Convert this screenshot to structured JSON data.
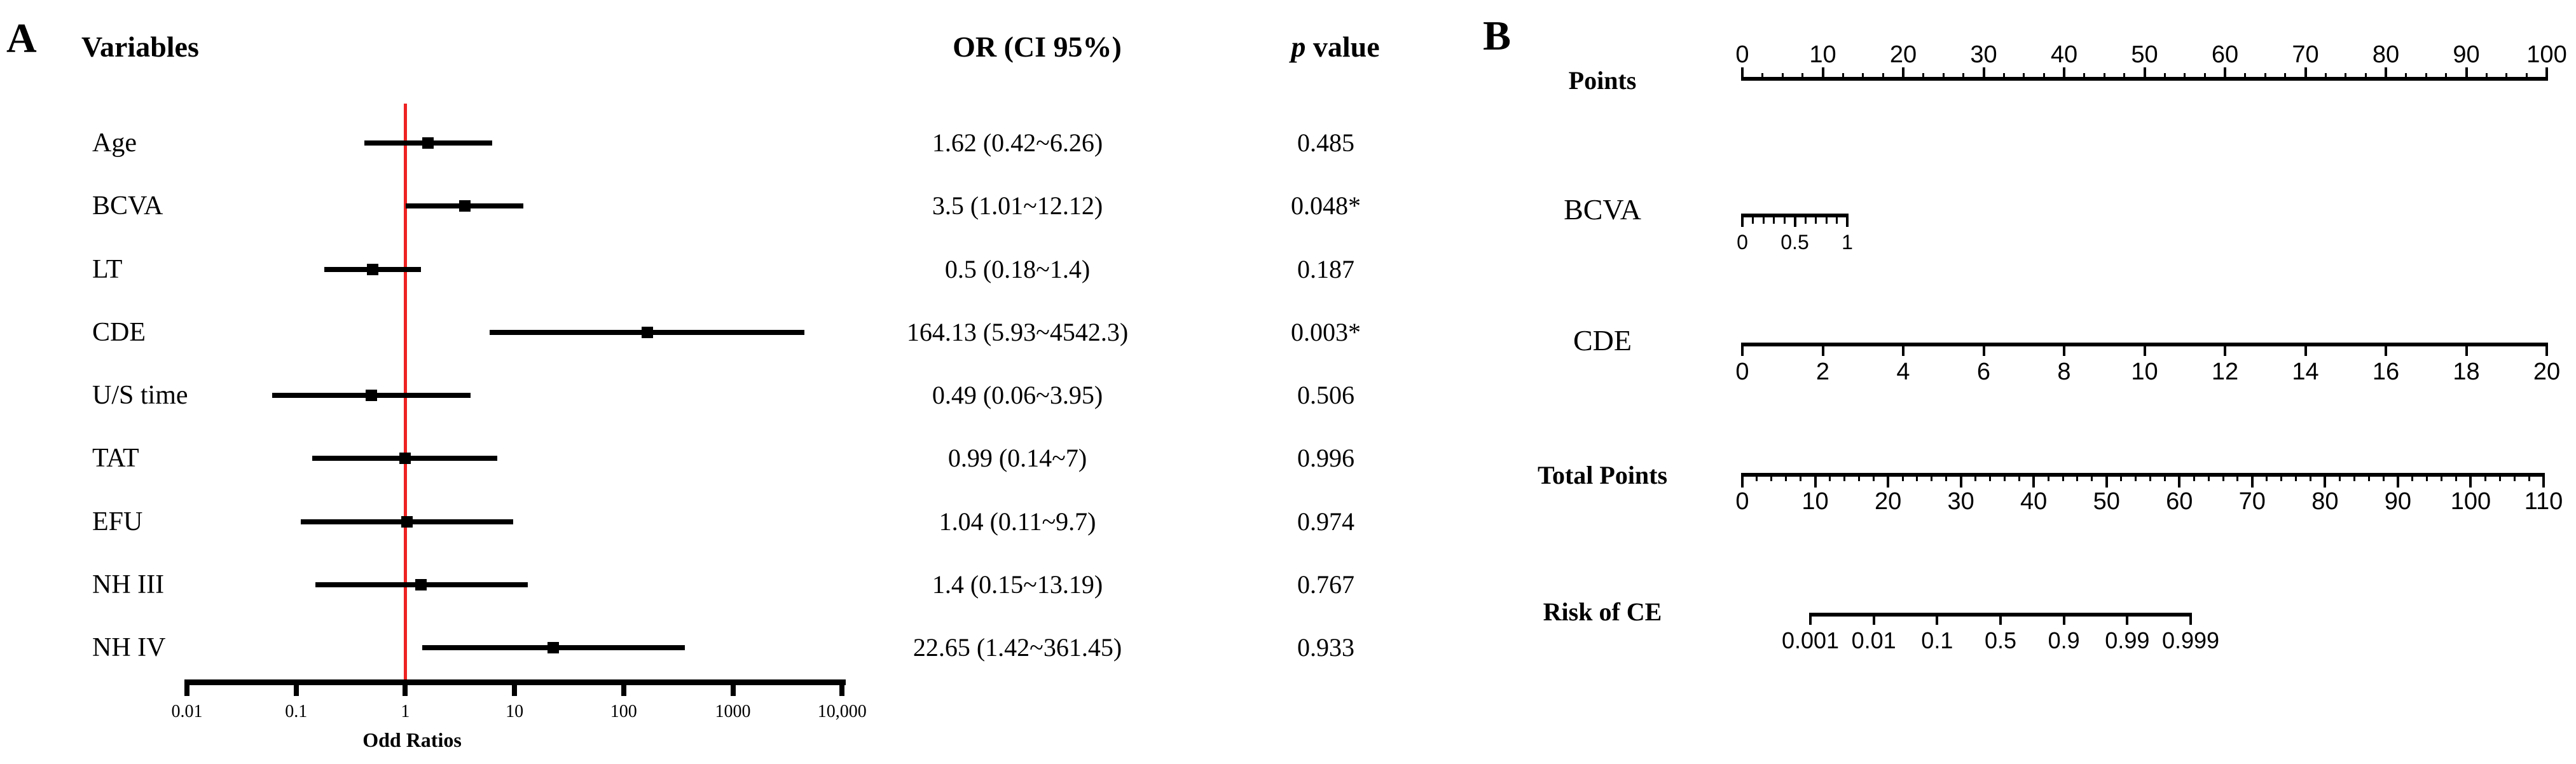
{
  "figure": {
    "panel_a_label": "A",
    "panel_b_label": "B"
  },
  "panel_a": {
    "headers": {
      "variables": "Variables",
      "or_ci": "OR (CI 95%)",
      "p_italic": "p",
      "p_rest": " value"
    }
  },
  "chart_data": [
    {
      "type": "forest",
      "panel": "A",
      "xlabel": "Odd Ratios",
      "x_scale": "log10",
      "x_range": [
        0.01,
        10000
      ],
      "x_tick_values": [
        0.01,
        0.1,
        1,
        10,
        100,
        1000,
        10000
      ],
      "x_tick_labels": [
        "0.01",
        "0.1",
        "1",
        "10",
        "100",
        "1000",
        "10,000"
      ],
      "reference_line": 1,
      "reference_color": "#ee2222",
      "columns": {
        "variables": "Variables",
        "or_ci": "OR (CI 95%)",
        "p": "p value"
      },
      "rows": [
        {
          "variable": "Age",
          "or": 1.62,
          "low": 0.42,
          "high": 6.26,
          "or_ci": "1.62 (0.42~6.26)",
          "p": "0.485"
        },
        {
          "variable": "BCVA",
          "or": 3.5,
          "low": 1.01,
          "high": 12.12,
          "or_ci": "3.5 (1.01~12.12)",
          "p": "0.048*"
        },
        {
          "variable": "LT",
          "or": 0.5,
          "low": 0.18,
          "high": 1.4,
          "or_ci": "0.5 (0.18~1.4)",
          "p": "0.187"
        },
        {
          "variable": "CDE",
          "or": 164.13,
          "low": 5.93,
          "high": 4542.3,
          "or_ci": "164.13 (5.93~4542.3)",
          "p": "0.003*"
        },
        {
          "variable": "U/S time",
          "or": 0.49,
          "low": 0.06,
          "high": 3.95,
          "or_ci": "0.49 (0.06~3.95)",
          "p": "0.506"
        },
        {
          "variable": "TAT",
          "or": 0.99,
          "low": 0.14,
          "high": 7,
          "or_ci": "0.99 (0.14~7)",
          "p": "0.996"
        },
        {
          "variable": "EFU",
          "or": 1.04,
          "low": 0.11,
          "high": 9.7,
          "or_ci": "1.04 (0.11~9.7)",
          "p": "0.974"
        },
        {
          "variable": "NH III",
          "or": 1.4,
          "low": 0.15,
          "high": 13.19,
          "or_ci": "1.4 (0.15~13.19)",
          "p": "0.767"
        },
        {
          "variable": "NH IV",
          "or": 22.65,
          "low": 1.42,
          "high": 361.45,
          "or_ci": "22.65 (1.42~361.45)",
          "p": "0.933"
        }
      ]
    },
    {
      "type": "nomogram",
      "panel": "B",
      "scales": [
        {
          "name": "Points",
          "bold": true,
          "min": 0,
          "max": 100,
          "major_step": 10,
          "minor_step": 2.5,
          "tick_side": "up",
          "tick_labels": [
            "0",
            "10",
            "20",
            "30",
            "40",
            "50",
            "60",
            "70",
            "80",
            "90",
            "100"
          ]
        },
        {
          "name": "BCVA",
          "bold": false,
          "min": 0,
          "max": 1,
          "minor_step": 0.1,
          "label_values": [
            0,
            0.5,
            1
          ],
          "tick_side": "down",
          "tick_labels": [
            "0",
            "0.5",
            "1"
          ]
        },
        {
          "name": "CDE",
          "bold": false,
          "min": 0,
          "max": 20,
          "major_step": 2,
          "tick_side": "down",
          "tick_labels": [
            "0",
            "2",
            "4",
            "6",
            "8",
            "10",
            "12",
            "14",
            "16",
            "18",
            "20"
          ]
        },
        {
          "name": "Total Points",
          "bold": true,
          "min": 0,
          "max": 110,
          "major_step": 10,
          "minor_step": 2,
          "tick_side": "down",
          "tick_labels": [
            "0",
            "10",
            "20",
            "30",
            "40",
            "50",
            "60",
            "70",
            "80",
            "90",
            "100",
            "110"
          ]
        },
        {
          "name": "Risk of CE",
          "bold": true,
          "spacing": "even",
          "tick_side": "down",
          "tick_labels": [
            "0.001",
            "0.01",
            "0.1",
            "0.5",
            "0.9",
            "0.99",
            "0.999"
          ]
        }
      ]
    }
  ]
}
